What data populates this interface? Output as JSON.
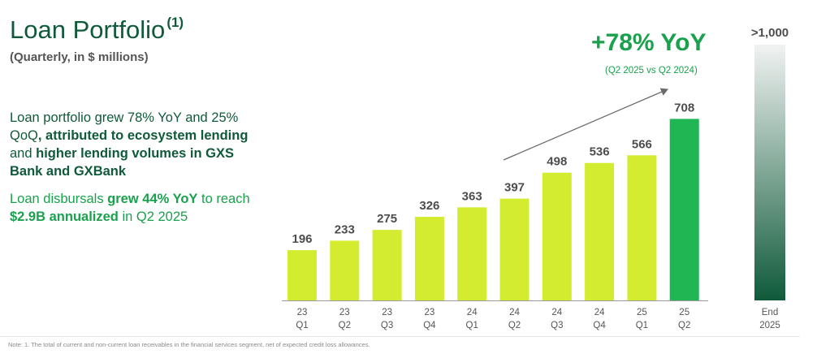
{
  "page": {
    "title": "Loan Portfolio",
    "title_footnote": "(1)",
    "subtitle": "(Quarterly, in $ millions)",
    "para1": {
      "t1": "Loan portfolio grew 78% YoY and 25% QoQ",
      "t2": ", attributed to ",
      "t3": "ecosystem lending",
      "t4": " and ",
      "t5": "higher lending volumes in GXS Bank and GXBank"
    },
    "para2": {
      "t1": "Loan disbursals ",
      "t2": "grew 44% YoY",
      "t3": " to reach ",
      "t4": "$2.9B annualized",
      "t5": " in Q2 2025"
    },
    "callout": {
      "headline": "+78% YoY",
      "sub": "(Q2 2025 vs Q2 2024)"
    },
    "note": "Note: 1. The total of current and non-current loan receivables in the financial services segment, net of expected credit loss allowances."
  },
  "colors": {
    "bar": "#d4ec2f",
    "bar_highlight": "#1fb653",
    "target_top": "#f1f3f2",
    "target_bottom": "#0f5a3a",
    "value_label": "#4d4d4d",
    "axis_label": "#555555",
    "axis_line": "#9a9a9a"
  },
  "chart_data": {
    "type": "bar",
    "title": "Loan Portfolio",
    "ylabel": "$ millions",
    "xlabel": "",
    "categories": [
      [
        "23",
        "Q1"
      ],
      [
        "23",
        "Q2"
      ],
      [
        "23",
        "Q3"
      ],
      [
        "23",
        "Q4"
      ],
      [
        "24",
        "Q1"
      ],
      [
        "24",
        "Q2"
      ],
      [
        "24",
        "Q3"
      ],
      [
        "24",
        "Q4"
      ],
      [
        "25",
        "Q1"
      ],
      [
        "25",
        "Q2"
      ]
    ],
    "values": [
      196,
      233,
      275,
      326,
      363,
      397,
      498,
      536,
      566,
      708
    ],
    "value_labels": [
      "196",
      "233",
      "275",
      "326",
      "363",
      "397",
      "498",
      "536",
      "566",
      "708"
    ],
    "highlight_index": 9,
    "target": {
      "category": [
        "End",
        "2025"
      ],
      "label": ">1,000",
      "value": 1000
    },
    "ylim": [
      0,
      1000
    ],
    "annotation": {
      "text": "+78% YoY",
      "from_category": [
        "24",
        "Q2"
      ],
      "to_category": [
        "25",
        "Q2"
      ]
    }
  }
}
